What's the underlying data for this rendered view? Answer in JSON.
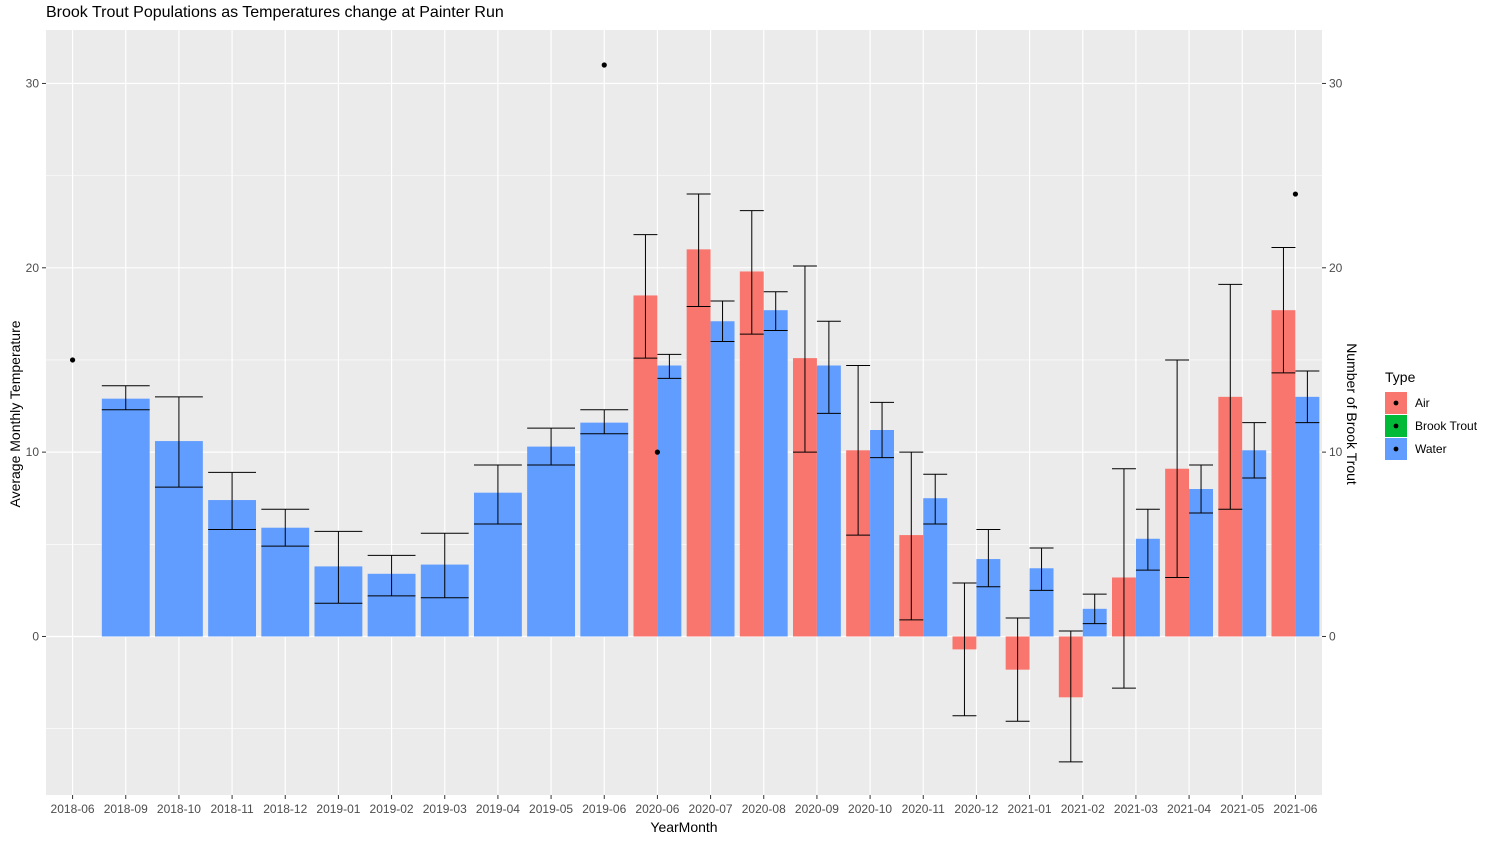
{
  "chart_data": {
    "type": "bar",
    "title": "Brook Trout Populations as Temperatures change at Painter Run",
    "xlabel": "YearMonth",
    "ylabel": "Average Monthly Temperature",
    "y2label": "Number of Brook Trout",
    "ylim": [
      -8.6,
      32.9
    ],
    "y_ticks": [
      0,
      10,
      20,
      30
    ],
    "y2_ticks": [
      0,
      10,
      20,
      30
    ],
    "grid": true,
    "legend": {
      "title": "Type",
      "placement": "right",
      "entries": [
        {
          "label": "Air",
          "color": "#F8766D"
        },
        {
          "label": "Brook Trout",
          "color": "#00BA38"
        },
        {
          "label": "Water",
          "color": "#619CFF"
        }
      ]
    },
    "categories": [
      "2018-06",
      "2018-09",
      "2018-10",
      "2018-11",
      "2018-12",
      "2019-01",
      "2019-02",
      "2019-03",
      "2019-04",
      "2019-05",
      "2019-06",
      "2020-06",
      "2020-07",
      "2020-08",
      "2020-09",
      "2020-10",
      "2020-11",
      "2020-12",
      "2021-01",
      "2021-02",
      "2021-03",
      "2021-04",
      "2021-05",
      "2021-06"
    ],
    "series": [
      {
        "name": "Air",
        "color": "#F8766D",
        "values": [
          null,
          null,
          null,
          null,
          null,
          null,
          null,
          null,
          null,
          null,
          null,
          18.5,
          21.0,
          19.8,
          15.1,
          10.1,
          5.5,
          -0.7,
          -1.8,
          -3.3,
          3.2,
          9.1,
          13.0,
          17.7
        ],
        "error_low": [
          null,
          null,
          null,
          null,
          null,
          null,
          null,
          null,
          null,
          null,
          null,
          15.1,
          17.9,
          16.4,
          10.0,
          5.5,
          0.9,
          -4.3,
          -4.6,
          -6.8,
          -2.8,
          3.2,
          6.9,
          14.3
        ],
        "error_high": [
          null,
          null,
          null,
          null,
          null,
          null,
          null,
          null,
          null,
          null,
          null,
          21.8,
          24.0,
          23.1,
          20.1,
          14.7,
          10.0,
          2.9,
          1.0,
          0.3,
          9.1,
          15.0,
          19.1,
          21.1
        ]
      },
      {
        "name": "Water",
        "color": "#619CFF",
        "values": [
          null,
          12.9,
          10.6,
          7.4,
          5.9,
          3.8,
          3.4,
          3.9,
          7.8,
          10.3,
          11.6,
          14.7,
          17.1,
          17.7,
          14.7,
          11.2,
          7.5,
          4.2,
          3.7,
          1.5,
          5.3,
          8.0,
          10.1,
          13.0
        ],
        "error_low": [
          null,
          12.3,
          8.1,
          5.8,
          4.9,
          1.8,
          2.2,
          2.1,
          6.1,
          9.3,
          11.0,
          14.0,
          16.0,
          16.6,
          12.1,
          9.7,
          6.1,
          2.7,
          2.5,
          0.7,
          3.6,
          6.7,
          8.6,
          11.6
        ],
        "error_high": [
          null,
          13.6,
          13.0,
          8.9,
          6.9,
          5.7,
          4.4,
          5.6,
          9.3,
          11.3,
          12.3,
          15.3,
          18.2,
          18.7,
          17.1,
          12.7,
          8.8,
          5.8,
          4.8,
          2.3,
          6.9,
          9.3,
          11.6,
          14.4
        ]
      },
      {
        "name": "Brook Trout",
        "color": "#000000",
        "type": "point",
        "points": [
          {
            "x": "2018-06",
            "y": 15
          },
          {
            "x": "2019-06",
            "y": 31
          },
          {
            "x": "2020-06",
            "y": 10
          },
          {
            "x": "2021-06",
            "y": 24
          }
        ]
      }
    ]
  }
}
